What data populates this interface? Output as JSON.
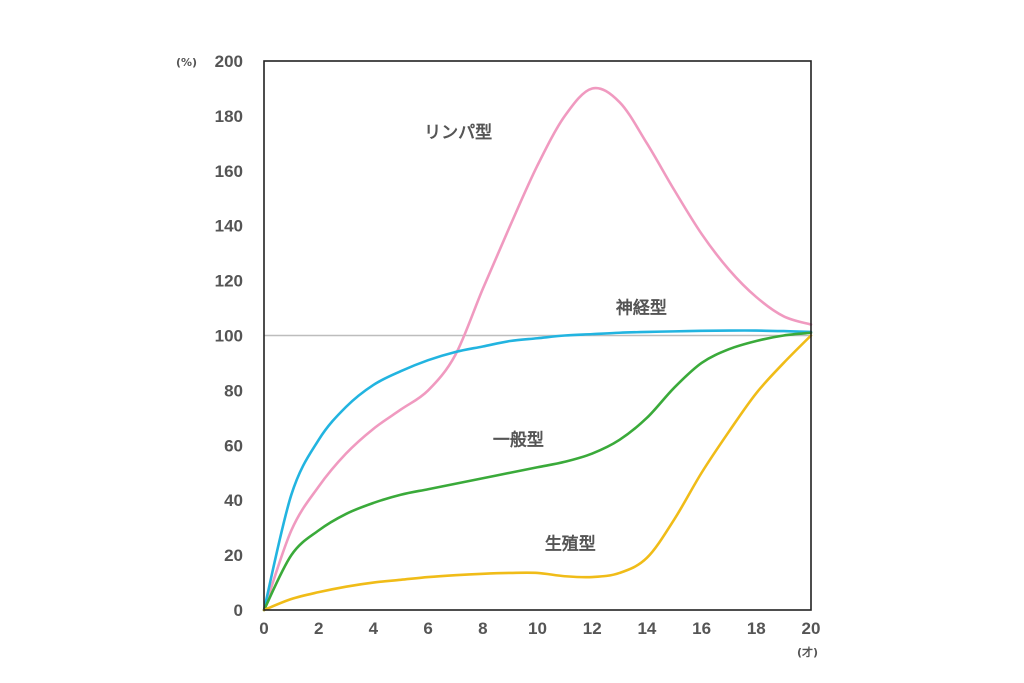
{
  "chart_data": {
    "type": "line",
    "title": "",
    "y_unit": "(%)",
    "x_unit": "(才)",
    "xlim": [
      0,
      20
    ],
    "ylim": [
      0,
      200
    ],
    "x_ticks": [
      "0",
      "2",
      "4",
      "6",
      "8",
      "10",
      "12",
      "14",
      "16",
      "18",
      "20"
    ],
    "y_ticks": [
      "0",
      "20",
      "40",
      "60",
      "80",
      "100",
      "120",
      "140",
      "160",
      "180",
      "200"
    ],
    "reference_line": 100,
    "grid": false,
    "legend": "none (inline labels)",
    "series": [
      {
        "name": "リンパ型",
        "color": "#f09ac0",
        "x": [
          0,
          1,
          2,
          3,
          4,
          5,
          6,
          7,
          8,
          9,
          10,
          11,
          12,
          13,
          14,
          15,
          16,
          17,
          18,
          19,
          20
        ],
        "y": [
          0,
          29,
          45,
          57,
          66,
          73,
          80,
          93,
          117,
          140,
          162,
          180,
          190,
          185,
          170,
          153,
          137,
          124,
          114,
          107,
          104
        ]
      },
      {
        "name": "神経型",
        "color": "#22b4e0",
        "x": [
          0,
          1,
          2,
          3,
          4,
          5,
          6,
          7,
          8,
          9,
          10,
          11,
          12,
          13,
          14,
          15,
          16,
          17,
          18,
          19,
          20
        ],
        "y": [
          0,
          42,
          62,
          74,
          82,
          87,
          91,
          94,
          96,
          98,
          99,
          100,
          100.5,
          101,
          101.3,
          101.5,
          101.7,
          101.8,
          101.8,
          101.6,
          101.3
        ]
      },
      {
        "name": "一般型",
        "color": "#3aaa3a",
        "x": [
          0,
          1,
          2,
          3,
          4,
          5,
          6,
          7,
          8,
          9,
          10,
          11,
          12,
          13,
          14,
          15,
          16,
          17,
          18,
          19,
          20
        ],
        "y": [
          0,
          20,
          29,
          35,
          39,
          42,
          44,
          46,
          48,
          50,
          52,
          54,
          57,
          62,
          70,
          81,
          90,
          95,
          98,
          100,
          101
        ]
      },
      {
        "name": "生殖型",
        "color": "#f0bc18",
        "x": [
          0,
          1,
          2,
          3,
          4,
          5,
          6,
          7,
          8,
          9,
          10,
          11,
          12,
          13,
          14,
          15,
          16,
          17,
          18,
          19,
          20
        ],
        "y": [
          0,
          4,
          6.5,
          8.5,
          10,
          11,
          12,
          12.7,
          13.2,
          13.5,
          13.5,
          12.3,
          12,
          13.5,
          19,
          33,
          50,
          65,
          79,
          90,
          100
        ]
      }
    ]
  }
}
